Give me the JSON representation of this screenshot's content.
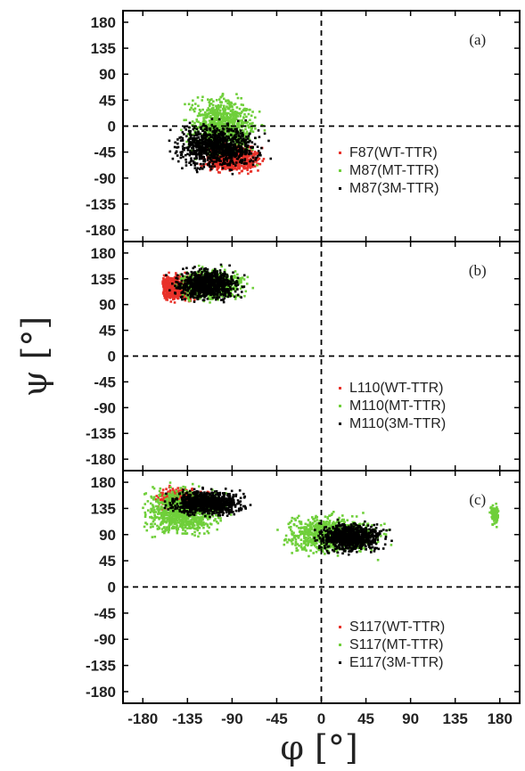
{
  "chart_data": [
    {
      "type": "scatter",
      "panel_label": "(a)",
      "xlim": [
        -200,
        200
      ],
      "ylim": [
        -200,
        200
      ],
      "x_ticks": [
        -180,
        -135,
        -90,
        -45,
        0,
        45,
        90,
        135,
        180
      ],
      "y_ticks": [
        180,
        135,
        90,
        45,
        0,
        -45,
        -90,
        -135,
        -180
      ],
      "reference_lines": {
        "x": 0,
        "y": 0,
        "style": "dashed"
      },
      "legend_position": "right-middle",
      "series": [
        {
          "name": "F87(WT-TTR)",
          "color": "#e8322a",
          "clusters": [
            {
              "phi_range": [
                -130,
                -45
              ],
              "psi_range": [
                -105,
                -30
              ],
              "center": [
                -90,
                -55
              ]
            }
          ]
        },
        {
          "name": "M87(MT-TTR)",
          "color": "#6fcf3a",
          "clusters": [
            {
              "phi_range": [
                -150,
                -45
              ],
              "psi_range": [
                -95,
                60
              ],
              "center": [
                -100,
                0
              ]
            }
          ]
        },
        {
          "name": "M87(3M-TTR)",
          "color": "#000000",
          "clusters": [
            {
              "phi_range": [
                -160,
                -35
              ],
              "psi_range": [
                -95,
                25
              ],
              "center": [
                -105,
                -35
              ]
            }
          ]
        }
      ]
    },
    {
      "type": "scatter",
      "panel_label": "(b)",
      "xlim": [
        -200,
        200
      ],
      "ylim": [
        -200,
        200
      ],
      "x_ticks": [
        -180,
        -135,
        -90,
        -45,
        0,
        45,
        90,
        135,
        180
      ],
      "y_ticks": [
        180,
        135,
        90,
        45,
        0,
        -45,
        -90,
        -135,
        -180
      ],
      "reference_lines": {
        "x": 0,
        "y": 0,
        "style": "dashed"
      },
      "legend_position": "right-middle",
      "series": [
        {
          "name": "L110(WT-TTR)",
          "color": "#e8322a",
          "clusters": [
            {
              "phi_range": [
                -160,
                -70
              ],
              "psi_range": [
                90,
                160
              ],
              "center": [
                -150,
                120
              ]
            }
          ]
        },
        {
          "name": "M110(MT-TTR)",
          "color": "#6fcf3a",
          "clusters": [
            {
              "phi_range": [
                -160,
                -60
              ],
              "psi_range": [
                85,
                165
              ],
              "center": [
                -110,
                125
              ]
            }
          ]
        },
        {
          "name": "M110(3M-TTR)",
          "color": "#000000",
          "clusters": [
            {
              "phi_range": [
                -160,
                -65
              ],
              "psi_range": [
                85,
                165
              ],
              "center": [
                -115,
                125
              ]
            }
          ]
        }
      ]
    },
    {
      "type": "scatter",
      "panel_label": "(c)",
      "xlim": [
        -200,
        200
      ],
      "ylim": [
        -200,
        200
      ],
      "x_ticks": [
        -180,
        -135,
        -90,
        -45,
        0,
        45,
        90,
        135,
        180
      ],
      "y_ticks": [
        180,
        135,
        90,
        45,
        0,
        -45,
        -90,
        -135,
        -180
      ],
      "reference_lines": {
        "x": 0,
        "y": 0,
        "style": "dashed"
      },
      "legend_position": "right-bottom",
      "series": [
        {
          "name": "S117(WT-TTR)",
          "color": "#e8322a",
          "clusters": [
            {
              "phi_range": [
                -175,
                -100
              ],
              "psi_range": [
                120,
                180
              ],
              "center": [
                -140,
                150
              ]
            }
          ]
        },
        {
          "name": "S117(MT-TTR)",
          "color": "#6fcf3a",
          "clusters": [
            {
              "phi_range": [
                -180,
                -60
              ],
              "psi_range": [
                60,
                180
              ],
              "center": [
                -140,
                130
              ]
            },
            {
              "phi_range": [
                -60,
                80
              ],
              "psi_range": [
                40,
                140
              ],
              "center": [
                10,
                90
              ]
            },
            {
              "phi_range": [
                165,
                180
              ],
              "psi_range": [
                95,
                150
              ],
              "center": [
                175,
                125
              ]
            }
          ]
        },
        {
          "name": "E117(3M-TTR)",
          "color": "#000000",
          "clusters": [
            {
              "phi_range": [
                -165,
                -55
              ],
              "psi_range": [
                110,
                175
              ],
              "center": [
                -115,
                145
              ]
            },
            {
              "phi_range": [
                -20,
                80
              ],
              "psi_range": [
                50,
                125
              ],
              "center": [
                30,
                85
              ]
            }
          ]
        }
      ]
    }
  ],
  "x_axis_title": "φ  [°]",
  "y_axis_title": "ψ [°]"
}
